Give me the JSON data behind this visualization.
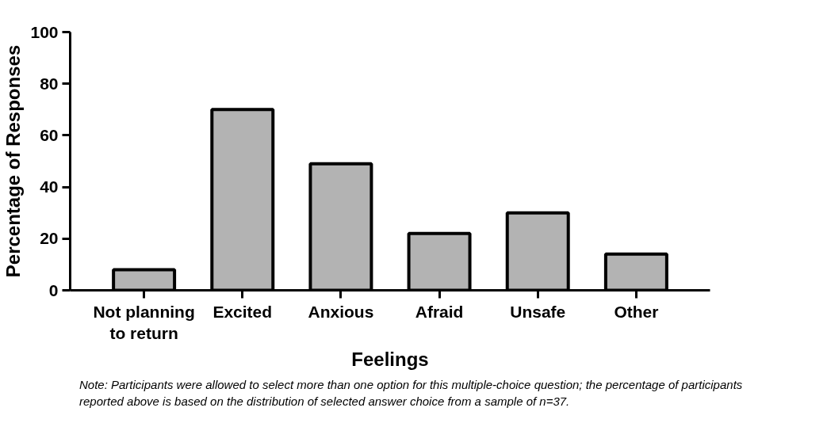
{
  "chart_data": {
    "type": "bar",
    "xlabel": "Feelings",
    "ylabel": "Percentage of Responses",
    "categories": [
      "Not planning to return",
      "Excited",
      "Anxious",
      "Afraid",
      "Unsafe",
      "Other"
    ],
    "values": [
      8,
      70,
      49,
      22,
      30,
      14
    ],
    "color": "#b3b3b3",
    "ylim": [
      0,
      100
    ],
    "yticks": [
      0,
      20,
      40,
      60,
      80,
      100
    ],
    "grid": false,
    "annotations": [
      "Note: Participants were allowed to select more than one option for this multiple-choice question; the percentage of participants reported above is based on the distribution of selected answer choice from a sample of n=37."
    ]
  }
}
